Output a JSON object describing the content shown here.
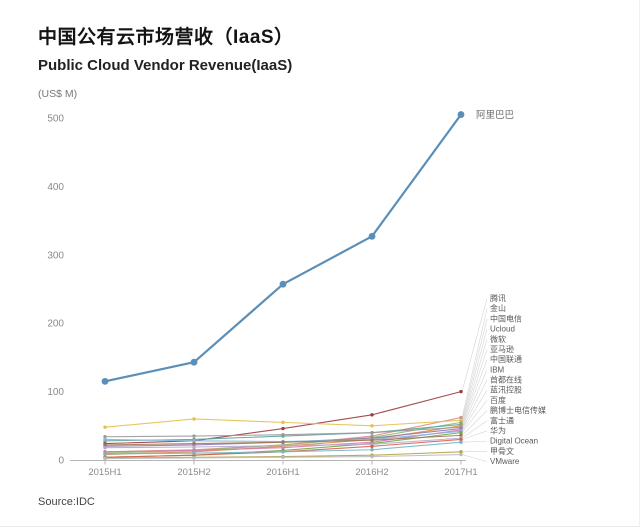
{
  "header": {
    "title": "中国公有云市场营收（IaaS）",
    "subtitle": "Public Cloud Vendor Revenue(IaaS)",
    "unit": "(US$ M)"
  },
  "footer": {
    "source": "Source:IDC"
  },
  "chart_data": {
    "type": "line",
    "title": "中国公有云市场营收（IaaS）/ Public Cloud Vendor Revenue(IaaS)",
    "xlabel": "",
    "ylabel": "(US$ M)",
    "categories": [
      "2015H1",
      "2015H2",
      "2016H1",
      "2016H2",
      "2017H1"
    ],
    "ylim": [
      0,
      500
    ],
    "yticks": [
      0,
      100,
      200,
      300,
      400,
      500
    ],
    "grid": false,
    "legend_position": "right-labels",
    "series": [
      {
        "name": "阿里巴巴",
        "color": "#5b8fb8",
        "values": [
          115,
          143,
          257,
          327,
          505
        ],
        "label_placement": "point",
        "line_width": 2.2,
        "marker_radius": 3.4
      },
      {
        "name": "腾讯",
        "color": "#9d3b3b",
        "values": [
          24,
          28,
          46,
          66,
          100
        ]
      },
      {
        "name": "金山",
        "color": "#d98e89",
        "values": [
          12,
          15,
          22,
          35,
          62
        ]
      },
      {
        "name": "中国电信",
        "color": "#e2c04e",
        "values": [
          48,
          60,
          55,
          50,
          58
        ]
      },
      {
        "name": "Ucloud",
        "color": "#8fb96f",
        "values": [
          10,
          14,
          22,
          33,
          55
        ]
      },
      {
        "name": "微软",
        "color": "#5ba3a0",
        "values": [
          28,
          30,
          35,
          40,
          52
        ]
      },
      {
        "name": "亚马逊",
        "color": "#e0883e",
        "values": [
          8,
          12,
          20,
          30,
          50
        ]
      },
      {
        "name": "中国联通",
        "color": "#9a9a9a",
        "values": [
          34,
          35,
          37,
          40,
          48
        ]
      },
      {
        "name": "IBM",
        "color": "#8e79b5",
        "values": [
          20,
          22,
          26,
          32,
          46
        ]
      },
      {
        "name": "首都在线",
        "color": "#d67ba8",
        "values": [
          12,
          14,
          18,
          26,
          44
        ]
      },
      {
        "name": "蓝汛控股",
        "color": "#86b5d9",
        "values": [
          30,
          28,
          27,
          30,
          42
        ]
      },
      {
        "name": "百度",
        "color": "#6aa84f",
        "values": [
          4,
          7,
          14,
          24,
          40
        ]
      },
      {
        "name": "鹏博士电信传媒",
        "color": "#a07850",
        "values": [
          22,
          24,
          26,
          29,
          36
        ]
      },
      {
        "name": "富士通",
        "color": "#b5a8d0",
        "values": [
          18,
          19,
          21,
          23,
          32
        ]
      },
      {
        "name": "华为",
        "color": "#d95f4b",
        "values": [
          4,
          7,
          12,
          20,
          30
        ]
      },
      {
        "name": "Digital Ocean",
        "color": "#72b7c8",
        "values": [
          9,
          10,
          12,
          15,
          26
        ]
      },
      {
        "name": "甲骨文",
        "color": "#b0a24a",
        "values": [
          3,
          4,
          5,
          7,
          12
        ]
      },
      {
        "name": "VMware",
        "color": "#bcbcbc",
        "values": [
          2,
          3,
          4,
          5,
          8
        ]
      }
    ]
  }
}
